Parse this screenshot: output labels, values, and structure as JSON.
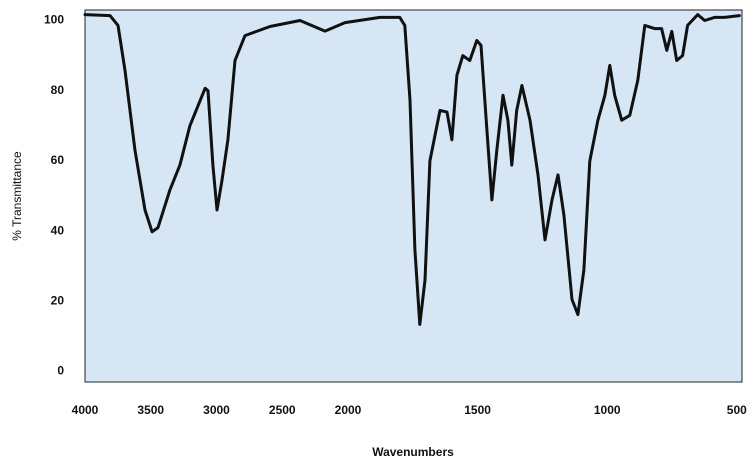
{
  "chart_data": {
    "type": "line",
    "x_label": "Wavenumbers",
    "y_label": "% Transmittance",
    "x": [
      4000,
      3810,
      3749,
      3696,
      3620,
      3544,
      3490,
      3445,
      3354,
      3278,
      3202,
      3087,
      3065,
      3027,
      2996,
      2958,
      2913,
      2859,
      2783,
      2593,
      2365,
      2175,
      2023,
      1877,
      1800,
      1781,
      1761,
      1742,
      1723,
      1703,
      1684,
      1645,
      1618,
      1599,
      1580,
      1557,
      1530,
      1503,
      1487,
      1464,
      1445,
      1426,
      1402,
      1383,
      1368,
      1349,
      1329,
      1298,
      1267,
      1240,
      1213,
      1190,
      1167,
      1136,
      1113,
      1090,
      1067,
      1036,
      1009,
      990,
      971,
      944,
      913,
      882,
      855,
      817,
      790,
      770,
      751,
      732,
      709,
      690,
      651,
      624,
      586,
      547,
      490
    ],
    "values": [
      101.7,
      101.4,
      98.6,
      85.8,
      63,
      46,
      39.8,
      41,
      51.7,
      58.8,
      70,
      80.7,
      80,
      58.8,
      46,
      54.5,
      66,
      88.6,
      95.7,
      98.3,
      100,
      97,
      99.4,
      100.9,
      100.9,
      98.6,
      77.3,
      34.7,
      13.4,
      26,
      60,
      74.4,
      73.9,
      66,
      84.4,
      90,
      88.6,
      94.3,
      92.9,
      68.8,
      48.9,
      63,
      78.7,
      71.6,
      58.8,
      74.4,
      81.5,
      71.6,
      56,
      37.5,
      48.9,
      56,
      44.6,
      20.5,
      16.2,
      29,
      60,
      71.6,
      78.7,
      87.2,
      78.7,
      71.6,
      73,
      83,
      98.6,
      97.7,
      97.7,
      91.5,
      96.9,
      88.6,
      90,
      98.6,
      101.7,
      100,
      100.9,
      100.9,
      101.4
    ],
    "color": "#111111",
    "background": "#d6e6f5",
    "xlim": [
      4000,
      480
    ],
    "x_scale_break": 2000,
    "xticks": [
      4000,
      3500,
      3000,
      2500,
      2000,
      1500,
      1000,
      500
    ],
    "ylim": [
      -3,
      103
    ],
    "yticks": [
      0,
      20,
      40,
      60,
      80,
      100
    ],
    "grid": false
  }
}
